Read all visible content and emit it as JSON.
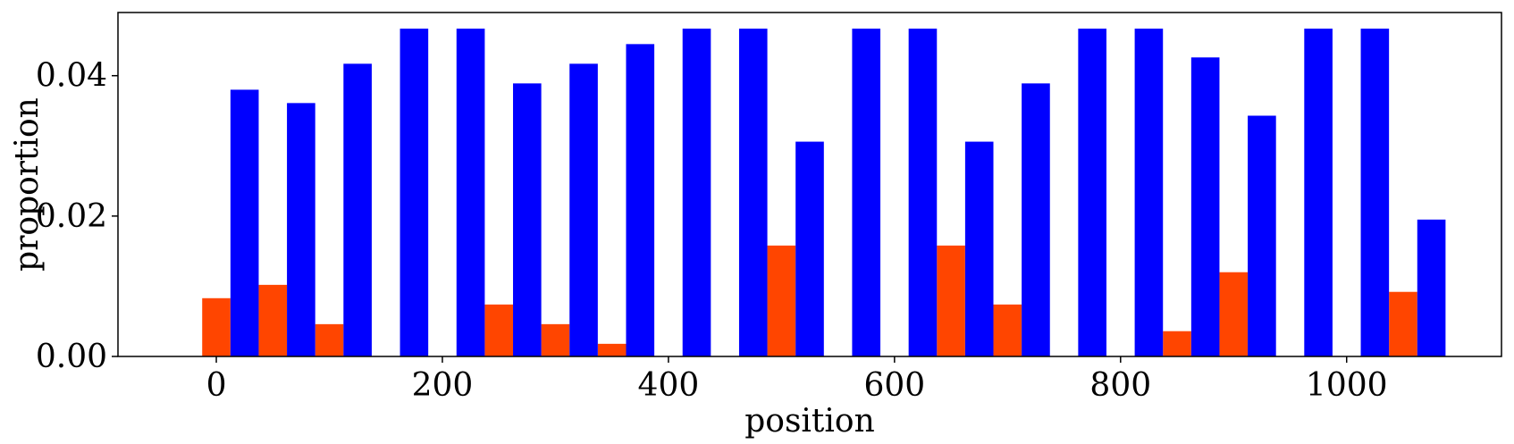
{
  "chart_data": {
    "type": "bar",
    "xlabel": "position",
    "ylabel": "proportion",
    "xlim": [
      -87,
      1137
    ],
    "ylim": [
      0,
      0.049
    ],
    "xticks": [
      0,
      200,
      400,
      600,
      800,
      1000
    ],
    "xtick_labels": [
      "0",
      "200",
      "400",
      "600",
      "800",
      "1000"
    ],
    "yticks": [
      0.0,
      0.02,
      0.04
    ],
    "ytick_labels": [
      "0.00",
      "0.02",
      "0.04"
    ],
    "bar_width": 25,
    "grid": false,
    "legend": "none",
    "series": [
      {
        "color": "#ff4500",
        "x": [
          0,
          50,
          100,
          150,
          200,
          250,
          300,
          350,
          400,
          450,
          500,
          550,
          600,
          650,
          700,
          750,
          800,
          850,
          900,
          950,
          1000,
          1050
        ],
        "values": [
          0.0083,
          0.0102,
          0.0046,
          0,
          0,
          0.0074,
          0.0046,
          0.0018,
          0,
          0,
          0.0158,
          0,
          0,
          0.0158,
          0.0074,
          0,
          0,
          0.0036,
          0.012,
          0,
          0,
          0.0092
        ]
      },
      {
        "color": "#0000ff",
        "x": [
          25,
          75,
          125,
          175,
          225,
          275,
          325,
          375,
          425,
          475,
          525,
          575,
          625,
          675,
          725,
          775,
          825,
          875,
          925,
          975,
          1025,
          1075
        ],
        "values": [
          0.038,
          0.0361,
          0.0417,
          0.0467,
          0.0467,
          0.0389,
          0.0417,
          0.0445,
          0.0467,
          0.0467,
          0.0306,
          0.0467,
          0.0467,
          0.0306,
          0.0389,
          0.0467,
          0.0467,
          0.0426,
          0.0343,
          0.0467,
          0.0467,
          0.0195
        ]
      }
    ]
  }
}
